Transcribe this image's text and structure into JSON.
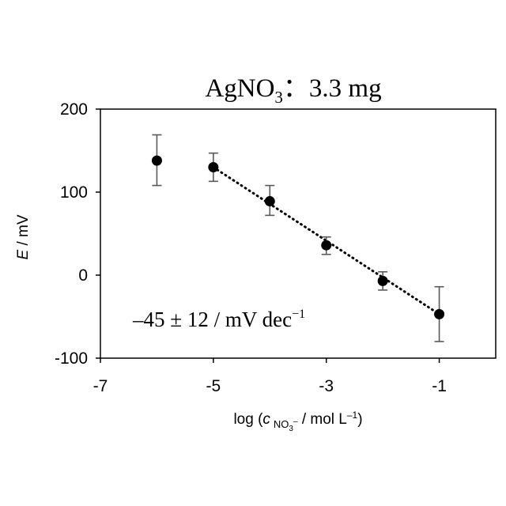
{
  "chart_data": {
    "type": "scatter",
    "title": {
      "main": "AgNO",
      "sub": "3",
      "rest": "：3.3 mg"
    },
    "xlabel": {
      "prefix": "log (",
      "var": "c",
      "sub_main": "NO",
      "sub_sub": "3",
      "sub_sup": "–",
      "units": " / mol L",
      "units_sup": "–1",
      "suffix": ")"
    },
    "ylabel": {
      "var": "E",
      "units": " / mV"
    },
    "xlim": [
      -7,
      0
    ],
    "ylim": [
      -100,
      200
    ],
    "xticks": [
      -7,
      -5,
      -3,
      -1
    ],
    "xtick_labels": [
      "-7",
      "-5",
      "-3",
      "-1"
    ],
    "yticks": [
      -100,
      0,
      100,
      200
    ],
    "ytick_labels": [
      "-100",
      "0",
      "100",
      "200"
    ],
    "grid": false,
    "series": [
      {
        "x": [
          -6,
          -5,
          -4,
          -3,
          -2,
          -1
        ],
        "y": [
          138,
          130,
          89,
          36,
          -7,
          -47
        ],
        "err_low": [
          30,
          17,
          17,
          11,
          11,
          33
        ],
        "err_high": [
          31,
          17,
          19,
          10,
          11,
          33
        ]
      }
    ],
    "fit": {
      "x": [
        -5,
        -1
      ],
      "y": [
        130,
        -47
      ],
      "style": "dotted",
      "label": {
        "main": "–45 ± 12 / mV dec",
        "sup": "−1"
      }
    }
  },
  "colors": {
    "marker": "#000000",
    "errorbar": "#595959",
    "axis": "#000000",
    "fit": "#000000"
  }
}
